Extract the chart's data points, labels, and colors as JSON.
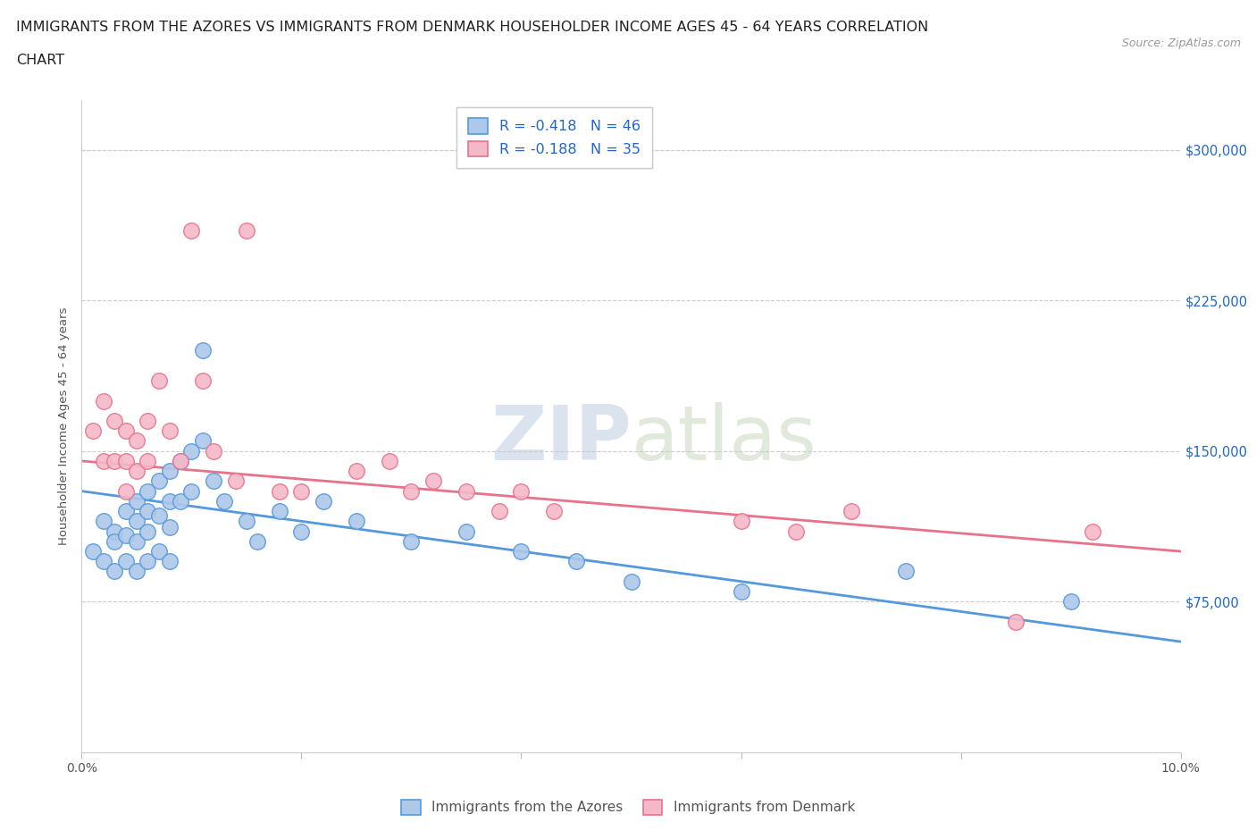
{
  "title_line1": "IMMIGRANTS FROM THE AZORES VS IMMIGRANTS FROM DENMARK HOUSEHOLDER INCOME AGES 45 - 64 YEARS CORRELATION",
  "title_line2": "CHART",
  "source_text": "Source: ZipAtlas.com",
  "ylabel": "Householder Income Ages 45 - 64 years",
  "xlim": [
    0.0,
    0.1
  ],
  "ylim": [
    0,
    325000
  ],
  "yticks": [
    0,
    75000,
    150000,
    225000,
    300000
  ],
  "ytick_labels": [
    "",
    "$75,000",
    "$150,000",
    "$225,000",
    "$300,000"
  ],
  "xticks": [
    0.0,
    0.02,
    0.04,
    0.06,
    0.08,
    0.1
  ],
  "legend_label1": "R = -0.418   N = 46",
  "legend_label2": "R = -0.188   N = 35",
  "legend_bottom_label1": "Immigrants from the Azores",
  "legend_bottom_label2": "Immigrants from Denmark",
  "color_blue": "#adc8e8",
  "color_pink": "#f5b8c8",
  "color_blue_line": "#5599dd",
  "color_pink_line": "#e8728a",
  "color_blue_text": "#2266cc",
  "watermark_color": "#ccd8e8",
  "azores_x": [
    0.001,
    0.002,
    0.002,
    0.003,
    0.003,
    0.003,
    0.004,
    0.004,
    0.004,
    0.005,
    0.005,
    0.005,
    0.005,
    0.006,
    0.006,
    0.006,
    0.006,
    0.007,
    0.007,
    0.007,
    0.008,
    0.008,
    0.008,
    0.008,
    0.009,
    0.009,
    0.01,
    0.01,
    0.011,
    0.011,
    0.012,
    0.013,
    0.015,
    0.016,
    0.018,
    0.02,
    0.022,
    0.025,
    0.03,
    0.035,
    0.04,
    0.045,
    0.05,
    0.06,
    0.075,
    0.09
  ],
  "azores_y": [
    100000,
    115000,
    95000,
    110000,
    105000,
    90000,
    120000,
    108000,
    95000,
    125000,
    115000,
    105000,
    90000,
    130000,
    120000,
    110000,
    95000,
    135000,
    118000,
    100000,
    140000,
    125000,
    112000,
    95000,
    145000,
    125000,
    150000,
    130000,
    155000,
    200000,
    135000,
    125000,
    115000,
    105000,
    120000,
    110000,
    125000,
    115000,
    105000,
    110000,
    100000,
    95000,
    85000,
    80000,
    90000,
    75000
  ],
  "denmark_x": [
    0.001,
    0.002,
    0.002,
    0.003,
    0.003,
    0.004,
    0.004,
    0.004,
    0.005,
    0.005,
    0.006,
    0.006,
    0.007,
    0.008,
    0.009,
    0.01,
    0.011,
    0.012,
    0.014,
    0.015,
    0.018,
    0.02,
    0.025,
    0.028,
    0.03,
    0.032,
    0.035,
    0.038,
    0.04,
    0.043,
    0.06,
    0.065,
    0.07,
    0.085,
    0.092
  ],
  "denmark_y": [
    160000,
    175000,
    145000,
    165000,
    145000,
    160000,
    145000,
    130000,
    155000,
    140000,
    165000,
    145000,
    185000,
    160000,
    145000,
    260000,
    185000,
    150000,
    135000,
    260000,
    130000,
    130000,
    140000,
    145000,
    130000,
    135000,
    130000,
    120000,
    130000,
    120000,
    115000,
    110000,
    120000,
    65000,
    110000
  ]
}
